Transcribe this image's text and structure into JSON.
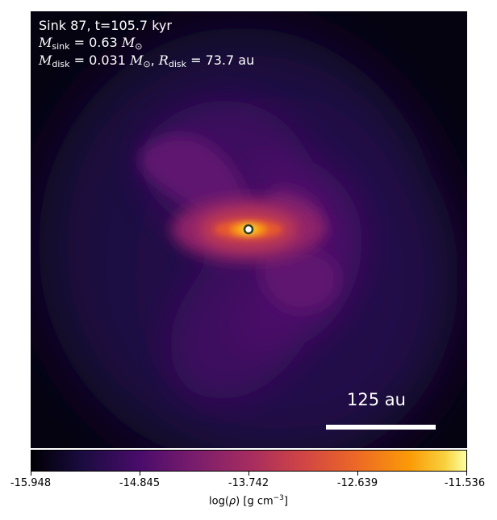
{
  "figure": {
    "title": "Sink 87, t=105.7 kyr",
    "m_sink_value": "0.63",
    "m_disk_value": "0.031",
    "r_disk_value": "73.7",
    "r_disk_unit": "au"
  },
  "scale_bar": {
    "label": "125 au"
  },
  "colorbar": {
    "ticks": [
      "-15.948",
      "-14.845",
      "-13.742",
      "-12.639",
      "-11.536"
    ],
    "colormap": "inferno",
    "label_unit": "g cm"
  },
  "colors": {
    "background_low": "#000004",
    "core": "#fcffa4",
    "sink_marker_fill": "#ffffff",
    "sink_marker_edge": "#2f3d1c"
  }
}
